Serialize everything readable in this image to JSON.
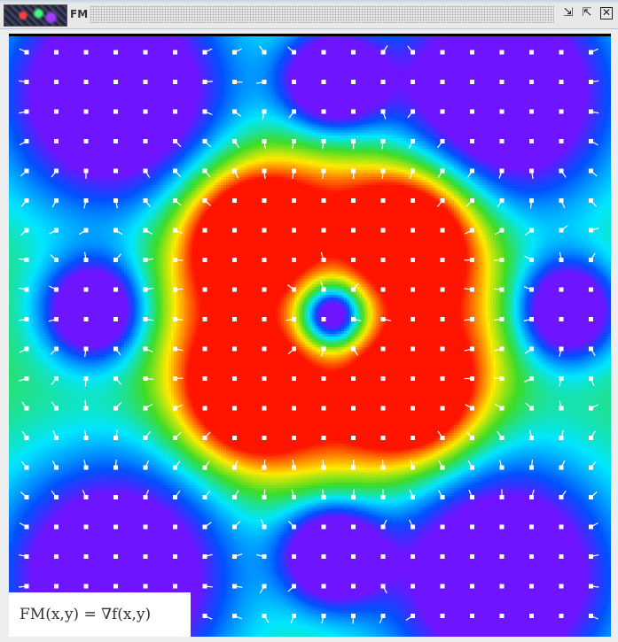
{
  "window": {
    "title": "FM",
    "buttons": {
      "restore": "⇲",
      "maximize": "⇱",
      "close": "✕"
    }
  },
  "plot": {
    "formula": "FM(x,y) = ∇f(x,y)",
    "colors": {
      "low": "#6a1aff",
      "mid_low": "#0066ff",
      "mid": "#00e5ff",
      "mid_high": "#33dd33",
      "high_mid": "#ffee00",
      "high": "#ff2200"
    },
    "arrow_color": "#ffffff"
  }
}
